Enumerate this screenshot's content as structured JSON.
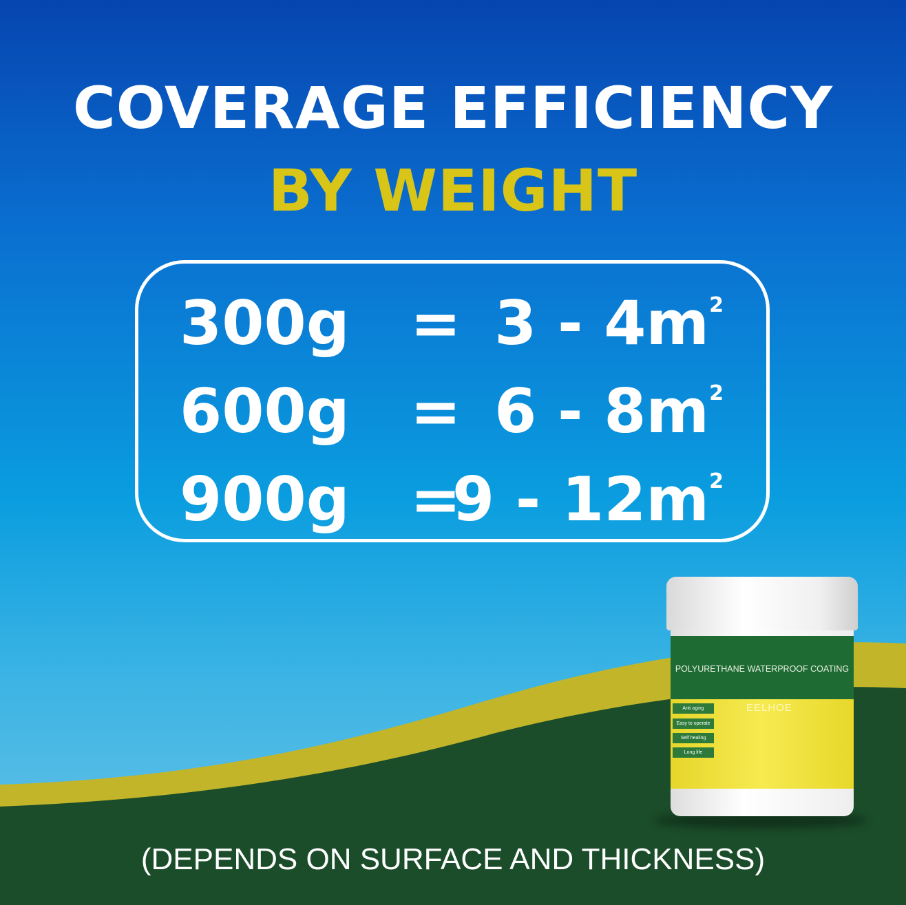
{
  "title_line1": "COVERAGE EFFICIENCY",
  "title_line2": "BY WEIGHT",
  "rows": [
    {
      "weight": "300g",
      "eq": "=",
      "range": "3 - 4m",
      "unit_sup": "2"
    },
    {
      "weight": "600g",
      "eq": "=",
      "range": "6 - 8m",
      "unit_sup": "2"
    },
    {
      "weight": "900g",
      "eq": "=",
      "range": "9 - 12m",
      "unit_sup": "2"
    }
  ],
  "footnote": "(DEPENDS ON SURFACE AND THICKNESS)",
  "product": {
    "name": "POLYURETHANE WATERPROOF COATING",
    "brand": "EELHOE",
    "features": [
      "Anti aging",
      "Easy to operate",
      "Self healing",
      "Long life"
    ]
  },
  "colors": {
    "accent_yellow": "#d8c517",
    "hill_yellow": "#c2b52a",
    "hill_green": "#1b4d2a",
    "sky_top": "#0645b0"
  }
}
